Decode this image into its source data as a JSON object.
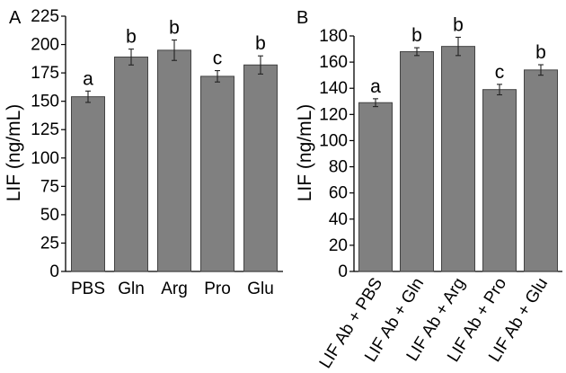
{
  "chart_data": [
    {
      "panel_label": "A",
      "type": "bar",
      "xlabel": "",
      "ylabel": "LIF (ng/mL)",
      "ylim": [
        0,
        225
      ],
      "yticks": [
        0,
        25,
        50,
        75,
        100,
        125,
        150,
        175,
        200,
        225
      ],
      "bar_color": "#808080",
      "categories": [
        "PBS",
        "Gln",
        "Arg",
        "Pro",
        "Glu"
      ],
      "values": [
        154,
        189,
        195,
        172,
        182
      ],
      "errors": [
        5,
        7,
        9,
        5,
        8
      ],
      "significance": [
        "a",
        "b",
        "b",
        "c",
        "b"
      ]
    },
    {
      "panel_label": "B",
      "type": "bar",
      "xlabel": "",
      "ylabel": "LIF (ng/mL)",
      "ylim": [
        0,
        180
      ],
      "yticks": [
        0,
        20,
        40,
        60,
        80,
        100,
        120,
        140,
        160,
        180
      ],
      "bar_color": "#808080",
      "categories": [
        "LIF Ab + PBS",
        "LIF Ab + Gln",
        "LIF Ab + Arg",
        "LIF Ab + Pro",
        "LIF Ab + Glu"
      ],
      "values": [
        129,
        168,
        172,
        139,
        154
      ],
      "errors": [
        3,
        3,
        7,
        4,
        4
      ],
      "significance": [
        "a",
        "b",
        "b",
        "c",
        "b"
      ]
    }
  ]
}
